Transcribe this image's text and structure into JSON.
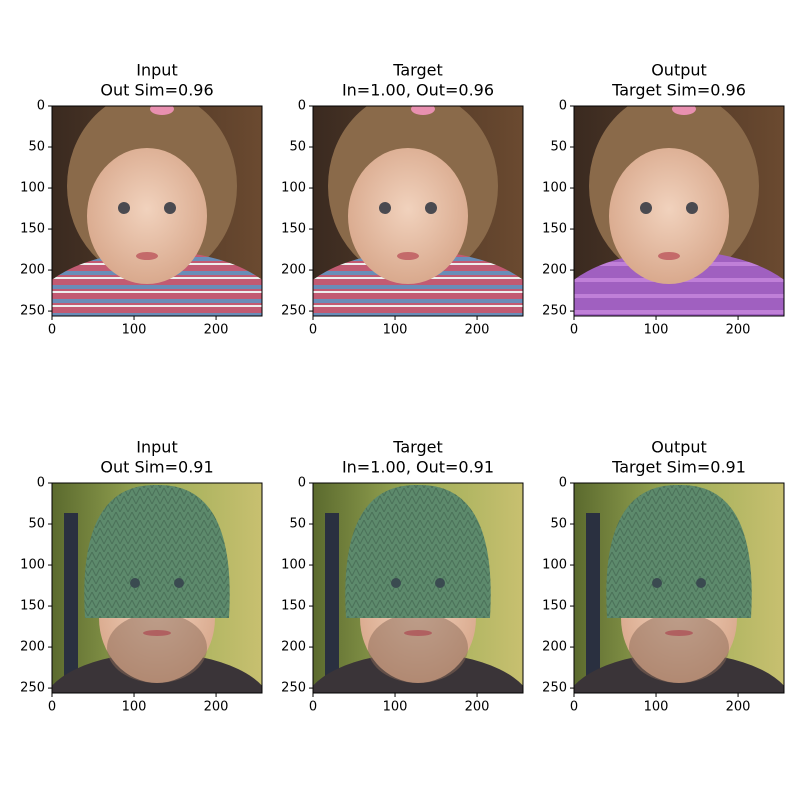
{
  "panels": [
    {
      "title": [
        "Input",
        "Out Sim=0.96"
      ]
    },
    {
      "title": [
        "Target",
        "In=1.00, Out=0.96"
      ]
    },
    {
      "title": [
        "Output",
        "Target Sim=0.96"
      ]
    },
    {
      "title": [
        "Input",
        "Out Sim=0.91"
      ]
    },
    {
      "title": [
        "Target",
        "In=1.00, Out=0.91"
      ]
    },
    {
      "title": [
        "Output",
        "Target Sim=0.91"
      ]
    }
  ],
  "axes": {
    "xlim": [
      0,
      256
    ],
    "ylim": [
      256,
      0
    ],
    "xticks": [
      0,
      100,
      200
    ],
    "yticks": [
      0,
      50,
      100,
      150,
      200,
      250
    ]
  }
}
